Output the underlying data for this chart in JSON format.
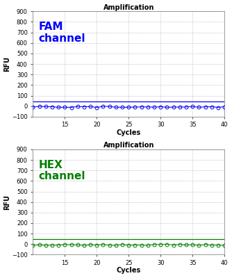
{
  "title": "Amplification",
  "xlabel": "Cycles",
  "ylabel": "RFU",
  "xlim": [
    10,
    40
  ],
  "ylim": [
    -100,
    900
  ],
  "yticks": [
    -100,
    0,
    100,
    200,
    300,
    400,
    500,
    600,
    700,
    800,
    900
  ],
  "xticks": [
    15,
    20,
    25,
    30,
    35,
    40
  ],
  "fam_color": "#0000FF",
  "hex_color": "#008000",
  "fam_label": "FAM\nchannel",
  "hex_label": "HEX\nchannel",
  "threshold_y": 45,
  "data_y": -5,
  "n_points": 31,
  "x_start": 10,
  "background": "#ffffff",
  "grid_color": "#b0b0b0",
  "title_fontsize": 7,
  "axis_label_fontsize": 7,
  "tick_fontsize": 6,
  "channel_fontsize": 11
}
